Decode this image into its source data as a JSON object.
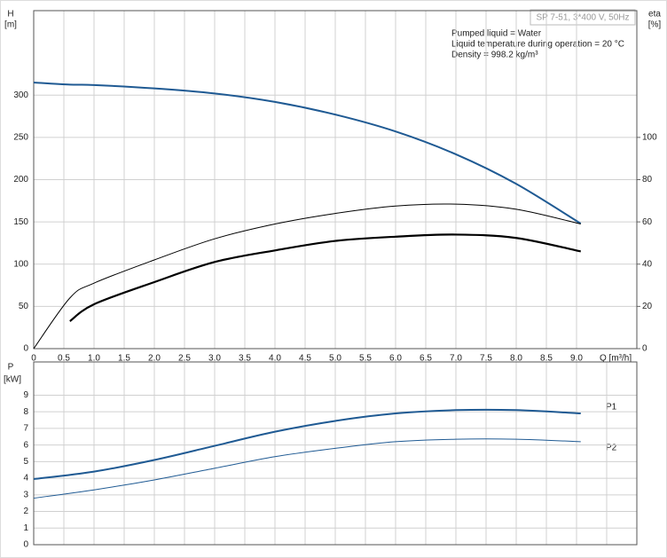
{
  "title": "SP 7-51, 3*400 V, 50Hz",
  "info": [
    "Pumped liquid = Water",
    "Liquid temperature during operation = 20 °C",
    "Density = 998.2 kg/m³"
  ],
  "chart_data": [
    {
      "type": "line",
      "ylabel": "H",
      "yunit": "[m]",
      "y2label": "eta",
      "y2unit": "[%]",
      "xlabel": "Q [m³/h]",
      "x": [
        0,
        0.6,
        1,
        2,
        3,
        4,
        5,
        6,
        7,
        8,
        9.07
      ],
      "xlim": [
        0,
        10
      ],
      "xticks": [
        0,
        0.5,
        {
          "value": 1,
          "label": "1.0"
        },
        1.5,
        {
          "value": 2,
          "label": "2.0"
        },
        2.5,
        {
          "value": 3,
          "label": "3.0"
        },
        3.5,
        {
          "value": 4,
          "label": "4.0"
        },
        4.5,
        {
          "value": 5,
          "label": "5.0"
        },
        5.5,
        {
          "value": 6,
          "label": "6.0"
        },
        6.5,
        {
          "value": 7,
          "label": "7.0"
        },
        7.5,
        {
          "value": 8,
          "label": "8.0"
        },
        8.5,
        {
          "value": 9,
          "label": "9.0"
        }
      ],
      "ylim": [
        0,
        400
      ],
      "yticks": [
        0,
        50,
        100,
        150,
        200,
        250,
        300
      ],
      "y2lim": [
        0,
        160
      ],
      "y2ticks": [
        0,
        20,
        40,
        60,
        80,
        100
      ],
      "grid": true,
      "series": [
        {
          "color": "#1f5a93",
          "width": 2,
          "values": [
            315,
            312.5,
            312,
            308,
            302,
            292,
            277,
            257,
            230,
            195,
            148
          ]
        },
        {
          "color": "#000000",
          "width": 1,
          "axis": "y2",
          "values": [
            0,
            24,
            31,
            42,
            52,
            59,
            64,
            67.5,
            68.4,
            66,
            59
          ]
        },
        {
          "color": "#000000",
          "width": 2.2,
          "axis": "y2",
          "values": [
            null,
            13,
            21,
            31.5,
            41,
            46.5,
            51,
            53,
            54,
            52.4,
            46
          ]
        }
      ]
    },
    {
      "type": "line",
      "ylabel": "P",
      "yunit": "[kW]",
      "x": [
        0,
        1,
        2,
        3,
        4,
        5,
        6,
        7,
        8,
        9.07
      ],
      "xlim": [
        0,
        10
      ],
      "xticks": [
        0,
        0.5,
        1,
        1.5,
        2,
        2.5,
        3,
        3.5,
        4,
        4.5,
        5,
        5.5,
        6,
        6.5,
        7,
        7.5,
        8,
        8.5,
        9,
        9.5
      ],
      "ylim": [
        0,
        11
      ],
      "yticks": [
        0,
        1,
        2,
        3,
        4,
        5,
        6,
        7,
        8,
        9
      ],
      "grid": true,
      "series": [
        {
          "name": "P1",
          "color": "#1f5a93",
          "width": 2,
          "values": [
            3.95,
            4.4,
            5.1,
            5.95,
            6.8,
            7.45,
            7.9,
            8.1,
            8.1,
            7.9
          ]
        },
        {
          "name": "P2",
          "color": "#1f5a93",
          "width": 1,
          "values": [
            2.8,
            3.3,
            3.9,
            4.6,
            5.3,
            5.8,
            6.2,
            6.35,
            6.35,
            6.2
          ]
        }
      ]
    }
  ]
}
